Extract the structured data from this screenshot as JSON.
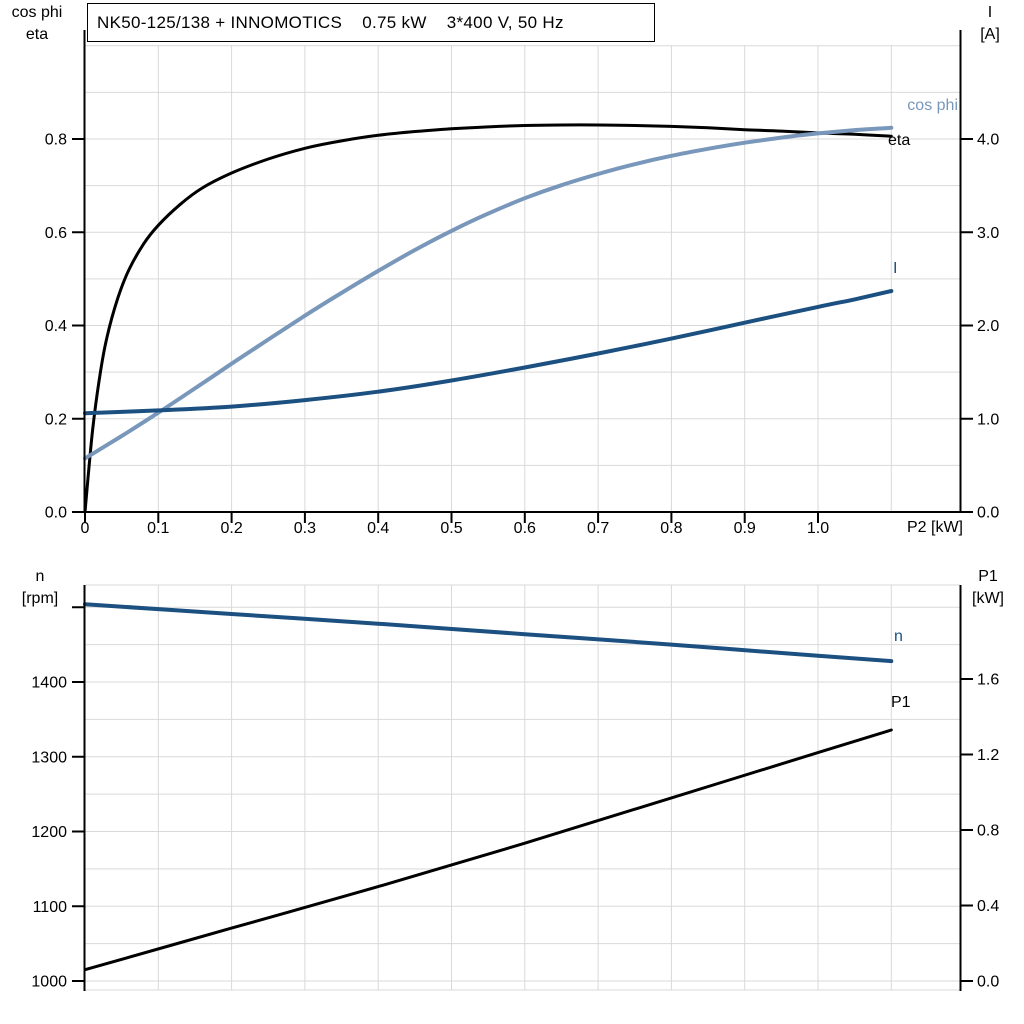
{
  "title": "NK50-125/138 + INNOMOTICS    0.75 kW    3*400 V, 50 Hz",
  "colors": {
    "background": "#ffffff",
    "grid": "#d9d9d9",
    "axis": "#000000",
    "black_curve": "#000000",
    "light_blue_curve": "#7897ba",
    "dark_blue_curve": "#1b5080"
  },
  "chart_data": [
    {
      "type": "line",
      "panel": "top",
      "x_label": "P2 [kW]",
      "x_range": [
        0,
        1.19
      ],
      "x_tick_values": [
        0,
        0.1,
        0.2,
        0.3,
        0.4,
        0.5,
        0.6,
        0.7,
        0.8,
        0.9,
        1.0
      ],
      "x_tick_labels": [
        "0",
        "0.1",
        "0.2",
        "0.3",
        "0.4",
        "0.5",
        "0.6",
        "0.7",
        "0.8",
        "0.9",
        "1.0"
      ],
      "grid": "on",
      "left_axis": {
        "title_lines": [
          "cos phi",
          "eta"
        ],
        "range": [
          0,
          1.0
        ],
        "tick_values": [
          0,
          0.2,
          0.4,
          0.6,
          0.8
        ],
        "tick_labels": [
          "0.0",
          "0.2",
          "0.4",
          "0.6",
          "0.8"
        ]
      },
      "right_axis": {
        "title_lines": [
          "I",
          "[A]"
        ],
        "range": [
          0,
          5.0
        ],
        "tick_values": [
          0,
          1,
          2,
          3,
          4
        ],
        "tick_labels": [
          "0.0",
          "1.0",
          "2.0",
          "3.0",
          "4.0"
        ]
      },
      "series": [
        {
          "name": "eta",
          "label": "eta",
          "axis": "left",
          "color": "#000000",
          "x": [
            0,
            0.01,
            0.02,
            0.03,
            0.045,
            0.06,
            0.08,
            0.1,
            0.13,
            0.16,
            0.2,
            0.25,
            0.3,
            0.35,
            0.4,
            0.45,
            0.5,
            0.55,
            0.6,
            0.65,
            0.7,
            0.75,
            0.8,
            0.85,
            0.9,
            0.95,
            1.0,
            1.05,
            1.1
          ],
          "y": [
            0,
            0.17,
            0.29,
            0.375,
            0.46,
            0.52,
            0.575,
            0.615,
            0.66,
            0.695,
            0.727,
            0.757,
            0.78,
            0.796,
            0.808,
            0.816,
            0.822,
            0.826,
            0.829,
            0.83,
            0.83,
            0.829,
            0.827,
            0.824,
            0.82,
            0.817,
            0.813,
            0.81,
            0.806
          ]
        },
        {
          "name": "cos phi",
          "label": "cos phi",
          "axis": "left",
          "color": "#7897ba",
          "x": [
            0,
            0.05,
            0.1,
            0.15,
            0.2,
            0.25,
            0.3,
            0.35,
            0.4,
            0.45,
            0.5,
            0.55,
            0.6,
            0.65,
            0.7,
            0.75,
            0.8,
            0.85,
            0.9,
            0.95,
            1.0,
            1.05,
            1.1
          ],
          "y": [
            0.115,
            0.163,
            0.213,
            0.265,
            0.318,
            0.37,
            0.421,
            0.47,
            0.517,
            0.562,
            0.603,
            0.64,
            0.673,
            0.701,
            0.725,
            0.746,
            0.764,
            0.779,
            0.792,
            0.803,
            0.812,
            0.819,
            0.824
          ]
        },
        {
          "name": "I",
          "label": "I",
          "axis": "right",
          "color": "#1b5080",
          "x": [
            0,
            0.1,
            0.2,
            0.3,
            0.4,
            0.5,
            0.6,
            0.7,
            0.8,
            0.9,
            1.0,
            1.05,
            1.1
          ],
          "y": [
            1.06,
            1.09,
            1.13,
            1.2,
            1.29,
            1.41,
            1.55,
            1.7,
            1.86,
            2.03,
            2.2,
            2.28,
            2.37
          ]
        }
      ]
    },
    {
      "type": "line",
      "panel": "bottom",
      "x_label": "",
      "x_range": [
        0,
        1.19
      ],
      "x_tick_values": [],
      "x_tick_labels": [],
      "grid": "on",
      "left_axis": {
        "title_lines": [
          "n",
          "[rpm]"
        ],
        "range": [
          988,
          1530
        ],
        "tick_values": [
          1000,
          1100,
          1200,
          1300,
          1400,
          1500
        ],
        "tick_labels": [
          "1000",
          "1100",
          "1200",
          "1300",
          "1400",
          ""
        ]
      },
      "right_axis": {
        "title_lines": [
          "P1",
          "[kW]"
        ],
        "range": [
          -0.05,
          2.1
        ],
        "tick_values": [
          0,
          0.4,
          0.8,
          1.2,
          1.6
        ],
        "tick_labels": [
          "0.0",
          "0.4",
          "0.8",
          "1.2",
          "1.6"
        ]
      },
      "series": [
        {
          "name": "n",
          "label": "n",
          "axis": "left",
          "color": "#1b5080",
          "x": [
            0,
            0.2,
            0.4,
            0.6,
            0.8,
            1.0,
            1.1
          ],
          "y": [
            1504,
            1491,
            1478,
            1464,
            1450,
            1435,
            1428
          ]
        },
        {
          "name": "P1",
          "label": "P1",
          "axis": "right",
          "color": "#000000",
          "x": [
            0,
            0.2,
            0.4,
            0.6,
            0.8,
            1.0,
            1.1
          ],
          "y": [
            0.06,
            0.28,
            0.5,
            0.73,
            0.97,
            1.21,
            1.33
          ]
        }
      ]
    }
  ]
}
